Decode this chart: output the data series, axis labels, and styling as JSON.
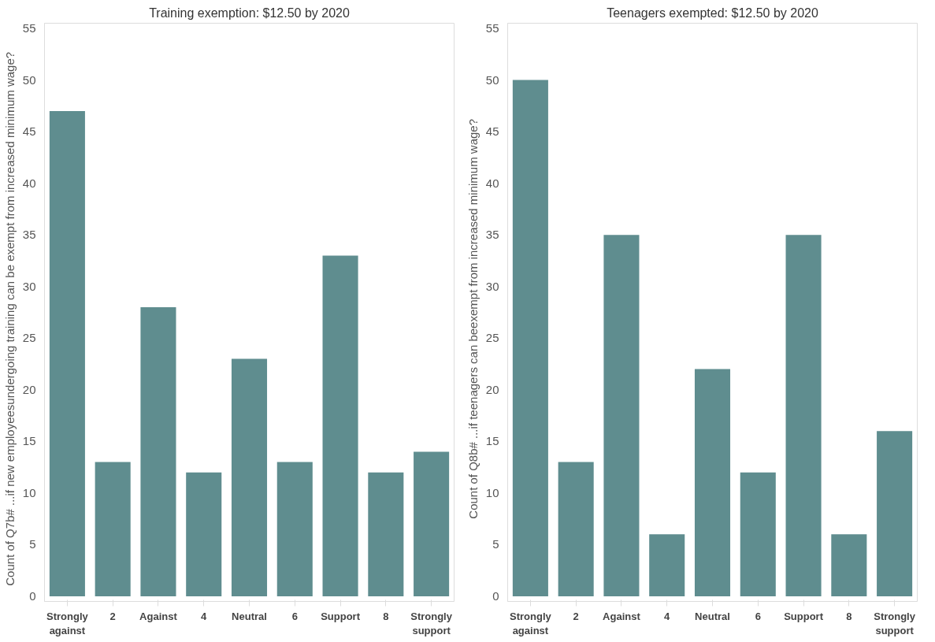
{
  "chart_data": [
    {
      "type": "bar",
      "title": "Training exemption: $12.50 by 2020",
      "ylabel": "Count of Q7b#     ...if new employeesundergoing training can be exempt from increased minimum wage?",
      "categories": [
        "Strongly against",
        "2",
        "Against",
        "4",
        "Neutral",
        "6",
        "Support",
        "8",
        "Strongly support"
      ],
      "values": [
        47,
        13,
        28,
        12,
        23,
        13,
        33,
        12,
        14
      ],
      "color": "#5f8d8f",
      "ylim": [
        -0.5,
        55.5
      ],
      "yticks": [
        0,
        5,
        10,
        15,
        20,
        25,
        30,
        35,
        40,
        45,
        50,
        55
      ],
      "grid": false,
      "legend": false
    },
    {
      "type": "bar",
      "title": "Teenagers exempted: $12.50 by 2020",
      "ylabel": "Count of Q8b#     ...if teenagers can beexempt from increased minimum wage?",
      "categories": [
        "Strongly against",
        "2",
        "Against",
        "4",
        "Neutral",
        "6",
        "Support",
        "8",
        "Strongly support"
      ],
      "values": [
        50,
        13,
        35,
        6,
        22,
        12,
        35,
        6,
        16
      ],
      "color": "#5f8d8f",
      "ylim": [
        -0.5,
        55.5
      ],
      "yticks": [
        0,
        5,
        10,
        15,
        20,
        25,
        30,
        35,
        40,
        45,
        50,
        55
      ],
      "grid": false,
      "legend": false
    }
  ]
}
